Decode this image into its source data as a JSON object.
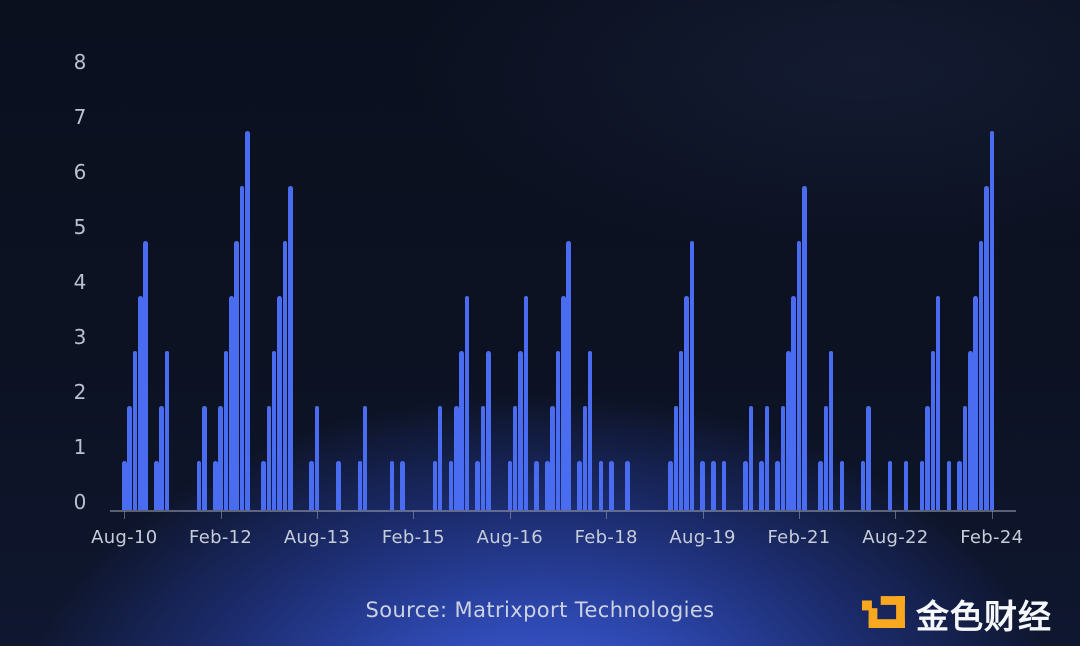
{
  "chart_data": {
    "type": "bar",
    "title": "",
    "description_of_series": "monthly streak count, one bar per month",
    "frequency": "monthly",
    "x_start": "2010-08",
    "x_end": "2024-02",
    "values": [
      1,
      2,
      3,
      4,
      5,
      0,
      1,
      2,
      3,
      0,
      0,
      0,
      0,
      0,
      1,
      2,
      0,
      1,
      2,
      3,
      4,
      5,
      6,
      7,
      0,
      0,
      1,
      2,
      3,
      4,
      5,
      6,
      0,
      0,
      0,
      1,
      2,
      0,
      0,
      0,
      1,
      0,
      0,
      0,
      1,
      2,
      0,
      0,
      0,
      0,
      1,
      0,
      1,
      0,
      0,
      0,
      0,
      0,
      1,
      2,
      0,
      1,
      2,
      3,
      4,
      0,
      1,
      2,
      3,
      0,
      0,
      0,
      1,
      2,
      3,
      4,
      0,
      1,
      0,
      1,
      2,
      3,
      4,
      5,
      0,
      1,
      2,
      3,
      0,
      1,
      0,
      1,
      0,
      0,
      1,
      0,
      0,
      0,
      0,
      0,
      0,
      0,
      1,
      2,
      3,
      4,
      5,
      0,
      1,
      0,
      1,
      0,
      1,
      0,
      0,
      0,
      1,
      2,
      0,
      1,
      2,
      0,
      1,
      2,
      3,
      4,
      5,
      6,
      0,
      0,
      1,
      2,
      3,
      0,
      1,
      0,
      0,
      0,
      1,
      2,
      0,
      0,
      0,
      1,
      0,
      0,
      1,
      0,
      0,
      1,
      2,
      3,
      4,
      0,
      1,
      0,
      1,
      2,
      3,
      4,
      5,
      6,
      7
    ],
    "x_tick_labels": [
      "Aug-10",
      "Feb-12",
      "Aug-13",
      "Feb-15",
      "Aug-16",
      "Feb-18",
      "Aug-19",
      "Feb-21",
      "Aug-22",
      "Feb-24"
    ],
    "y_ticks": [
      0,
      1,
      2,
      3,
      4,
      5,
      6,
      7,
      8
    ],
    "ylim": [
      0,
      8
    ],
    "grid": "off",
    "legend": "none",
    "bar_color": "#4a6cf0",
    "axis_color": "#9ba1b2",
    "label_color": "#c7ccd9"
  },
  "footer": {
    "source_label": "Source: Matrixport Technologies"
  },
  "branding": {
    "logo_text": "金色财经",
    "logo_color": "#f7a81f"
  }
}
